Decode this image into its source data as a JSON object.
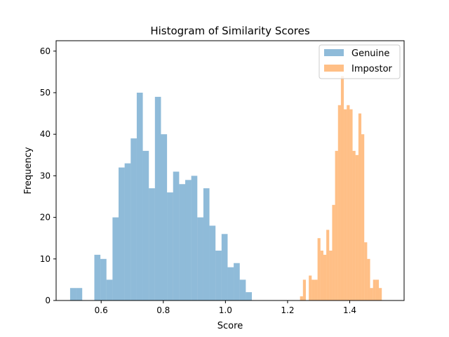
{
  "chart_data": {
    "type": "bar",
    "title": "Histogram of Similarity Scores",
    "xlabel": "Score",
    "ylabel": "Frequency",
    "xlim": [
      0.455,
      1.575
    ],
    "ylim": [
      0,
      62.5
    ],
    "xticks": [
      "0.6",
      "0.8",
      "1.0",
      "1.2",
      "1.4"
    ],
    "xtick_values": [
      0.6,
      0.8,
      1.0,
      1.2,
      1.4
    ],
    "yticks": [
      "0",
      "10",
      "20",
      "30",
      "40",
      "50",
      "60"
    ],
    "ytick_values": [
      0,
      10,
      20,
      30,
      40,
      50,
      60
    ],
    "grid": false,
    "legend_position": "top-right",
    "series": [
      {
        "name": "Genuine",
        "color": "#1f77b4",
        "opacity": 0.5,
        "bin_start": 0.5,
        "bin_width": 0.0195,
        "counts": [
          3,
          3,
          0,
          0,
          11,
          10,
          5,
          20,
          32,
          33,
          39,
          50,
          36,
          27,
          49,
          40,
          26,
          31,
          28,
          29,
          30,
          20,
          27,
          18,
          12,
          16,
          8,
          9,
          5,
          2
        ]
      },
      {
        "name": "Impostor",
        "color": "#ff7f0e",
        "opacity": 0.5,
        "bin_start": 1.24,
        "bin_width": 0.0094,
        "counts": [
          1,
          5,
          0,
          6,
          5,
          5,
          15,
          12,
          11,
          17,
          12,
          23,
          36,
          47,
          54,
          46,
          47,
          46,
          36,
          35,
          45,
          40,
          14,
          10,
          3,
          5,
          5,
          3
        ]
      }
    ]
  }
}
